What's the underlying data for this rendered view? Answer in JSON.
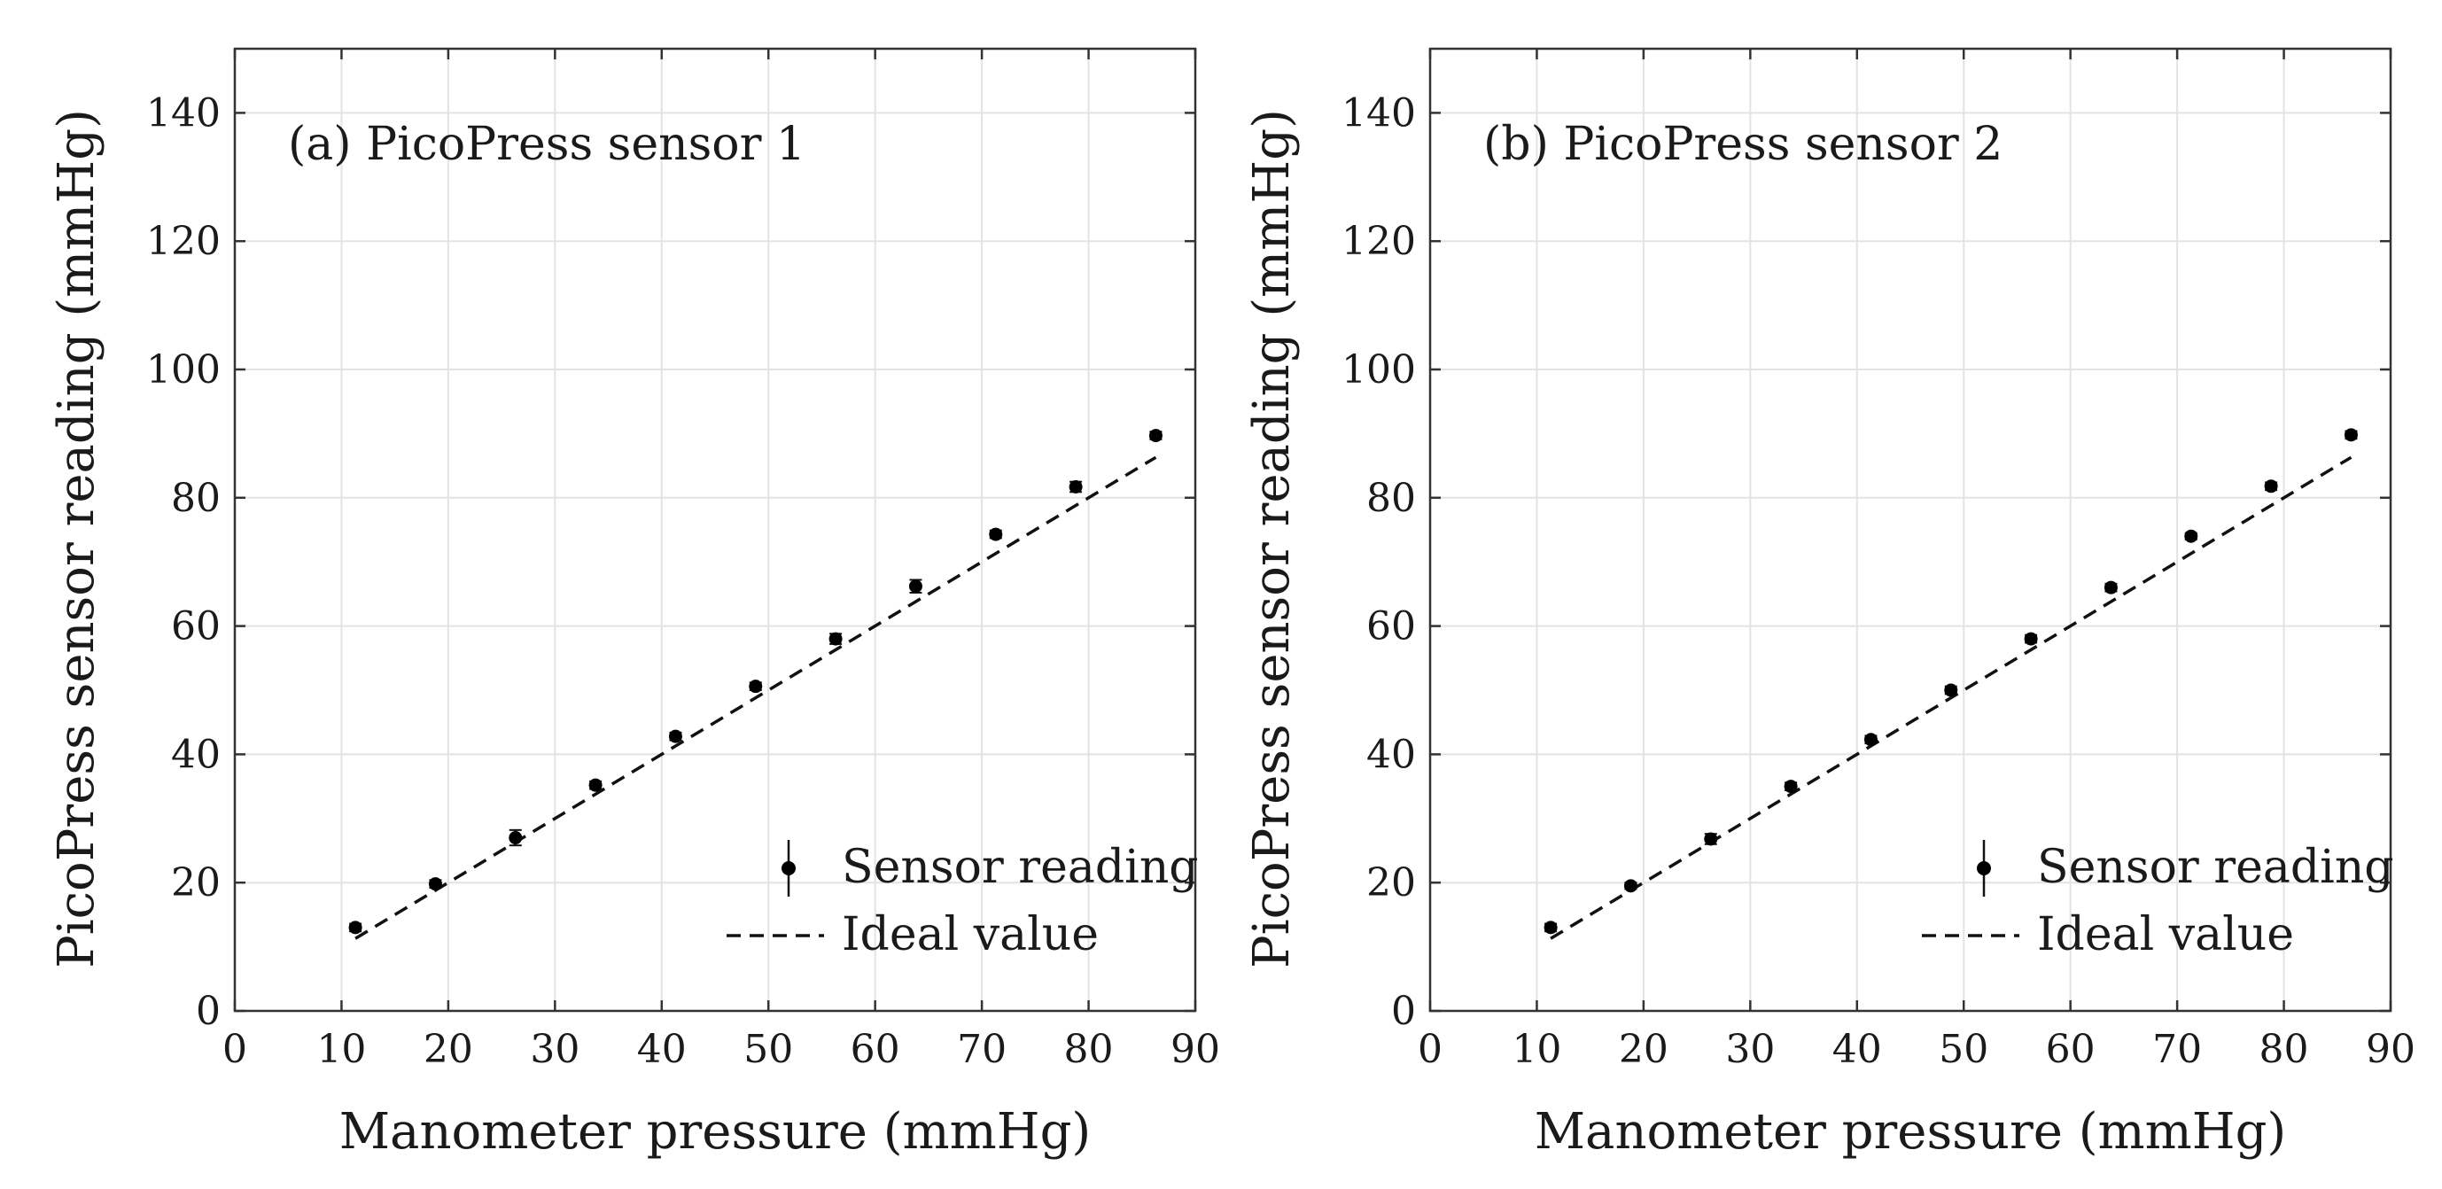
{
  "chart_data": [
    {
      "type": "scatter",
      "title": "(a) PicoPress sensor 1",
      "xlabel": "Manometer pressure (mmHg)",
      "ylabel": "PicoPress sensor reading (mmHg)",
      "xlim": [
        0,
        90
      ],
      "ylim": [
        0,
        150
      ],
      "xticks": [
        0,
        10,
        20,
        30,
        40,
        50,
        60,
        70,
        80,
        90
      ],
      "yticks": [
        0,
        20,
        40,
        60,
        80,
        100,
        120,
        140
      ],
      "grid": true,
      "legend_position": "lower-right",
      "series": [
        {
          "name": "Sensor reading",
          "kind": "errorbar",
          "x": [
            11.3,
            18.8,
            26.3,
            33.8,
            41.3,
            48.8,
            56.3,
            63.8,
            71.3,
            78.8,
            86.3
          ],
          "y": [
            13.0,
            19.8,
            27.0,
            35.2,
            42.8,
            50.6,
            58.0,
            66.2,
            74.3,
            81.7,
            89.7
          ],
          "err": [
            0.6,
            0.6,
            1.2,
            0.6,
            0.6,
            0.6,
            0.8,
            1.0,
            0.6,
            0.8,
            0.6
          ]
        },
        {
          "name": "Ideal value",
          "kind": "dashed-line",
          "x": [
            11.3,
            86.3
          ],
          "y": [
            11.3,
            86.3
          ]
        }
      ]
    },
    {
      "type": "scatter",
      "title": "(b) PicoPress sensor 2",
      "xlabel": "Manometer pressure (mmHg)",
      "ylabel": "PicoPress sensor reading (mmHg)",
      "xlim": [
        0,
        90
      ],
      "ylim": [
        0,
        150
      ],
      "xticks": [
        0,
        10,
        20,
        30,
        40,
        50,
        60,
        70,
        80,
        90
      ],
      "yticks": [
        0,
        20,
        40,
        60,
        80,
        100,
        120,
        140
      ],
      "grid": true,
      "legend_position": "lower-right",
      "series": [
        {
          "name": "Sensor reading",
          "kind": "errorbar",
          "x": [
            11.3,
            18.8,
            26.3,
            33.8,
            41.3,
            48.8,
            56.3,
            63.8,
            71.3,
            78.8,
            86.3
          ],
          "y": [
            13.0,
            19.5,
            26.8,
            35.0,
            42.3,
            50.0,
            58.0,
            66.0,
            74.0,
            81.8,
            89.8
          ],
          "err": [
            0.6,
            0.5,
            0.8,
            0.6,
            0.6,
            0.6,
            0.6,
            0.6,
            0.5,
            0.6,
            0.6
          ]
        },
        {
          "name": "Ideal value",
          "kind": "dashed-line",
          "x": [
            11.3,
            86.3
          ],
          "y": [
            11.3,
            86.3
          ]
        }
      ]
    }
  ]
}
